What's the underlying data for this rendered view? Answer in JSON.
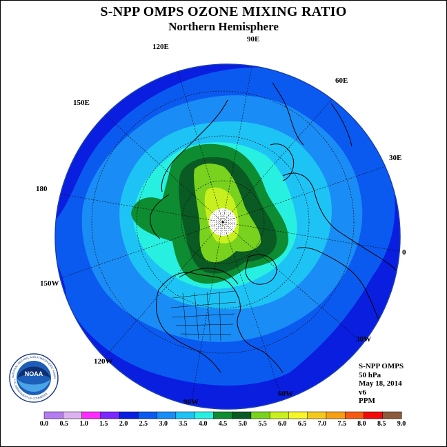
{
  "title": "S-NPP OMPS OZONE MIXING RATIO",
  "subtitle": "Northern Hemisphere",
  "longitude_labels": {
    "lon_90e": "90E",
    "lon_60e": "60E",
    "lon_30e": "30E",
    "lon_0": "0",
    "lon_30w": "30W",
    "lon_60w": "60W",
    "lon_90w": "90W",
    "lon_120w": "120W",
    "lon_150w": "150W",
    "lon_180": "180",
    "lon_150e": "150E",
    "lon_120e": "120E"
  },
  "info": {
    "instrument": "S-NPP OMPS",
    "level": "50 hPa",
    "date": "May 18, 2014",
    "version": "v6",
    "units": "PPM"
  },
  "logo": {
    "text": "NOAA",
    "ring_text": "NATIONAL OCEANIC AND ATMOSPHERIC ADMINISTRATION",
    "ring_text_bottom": "U.S. DEPARTMENT OF COMMERCE"
  },
  "colorbar": {
    "labels": [
      "0.0",
      "0.5",
      "1.0",
      "1.5",
      "2.0",
      "2.5",
      "3.0",
      "3.5",
      "4.0",
      "4.5",
      "5.0",
      "5.5",
      "6.0",
      "6.5",
      "7.0",
      "7.5",
      "8.0",
      "8.5",
      "9.0"
    ],
    "colors": [
      "#b57cf0",
      "#dcb3f0",
      "#ff2cff",
      "#7a28ff",
      "#0a1ee0",
      "#0a5af0",
      "#1a8cf5",
      "#1ec3f5",
      "#28f0e0",
      "#0e8c32",
      "#0a5a23",
      "#78d21e",
      "#c8f01e",
      "#f5f528",
      "#f5c81e",
      "#f5a014",
      "#f55a14",
      "#f00a0a",
      "#8c5a3c"
    ]
  }
}
